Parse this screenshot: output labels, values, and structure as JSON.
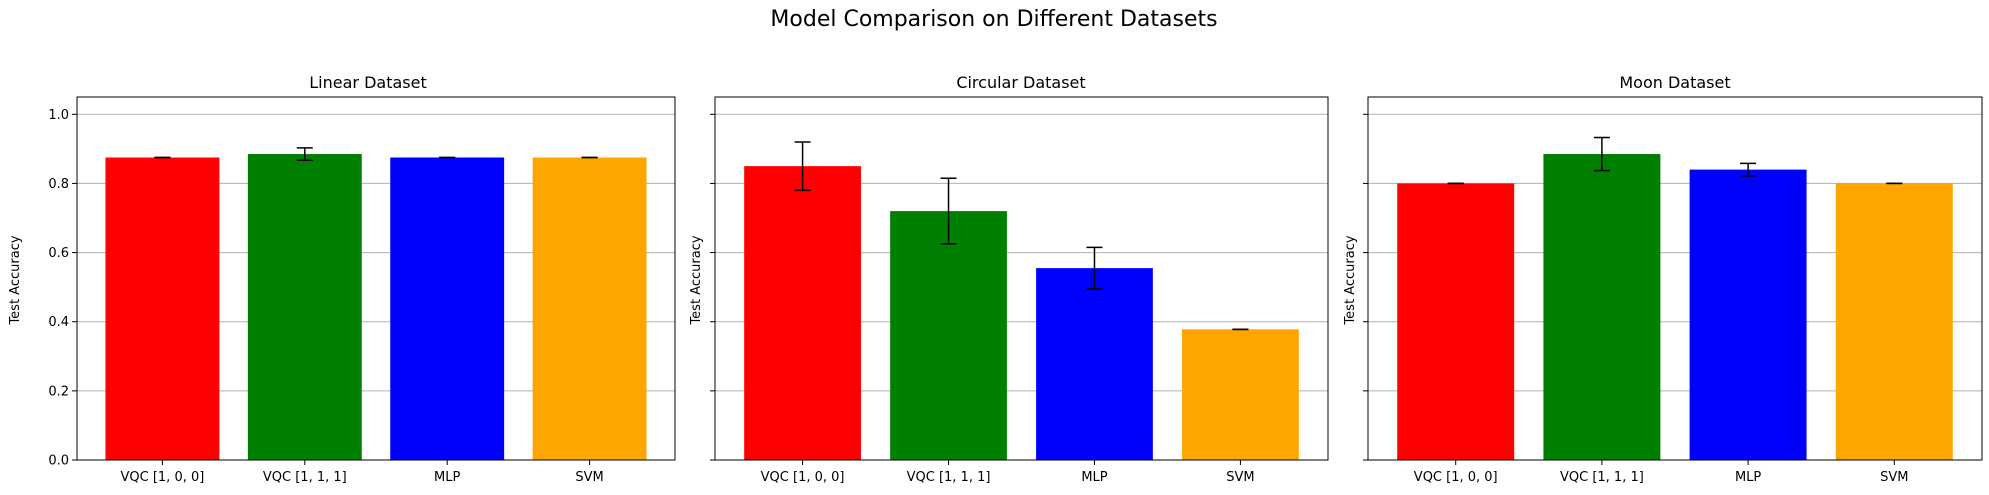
{
  "figure": {
    "title": "Model Comparison on Different Datasets"
  },
  "chart_data": [
    {
      "type": "bar",
      "title": "Linear Dataset",
      "xlabel": "",
      "ylabel": "Test Accuracy",
      "ylim": [
        0,
        1.05
      ],
      "yticks": [
        "0.0",
        "0.2",
        "0.4",
        "0.6",
        "0.8",
        "1.0"
      ],
      "show_ytick_labels": true,
      "grid": "y",
      "categories": [
        "VQC [1, 0, 0]",
        "VQC [1, 1, 1]",
        "MLP",
        "SVM"
      ],
      "values": [
        0.875,
        0.885,
        0.875,
        0.875
      ],
      "errors": [
        0.0,
        0.018,
        0.0,
        0.0
      ],
      "colors": [
        "#ff0000",
        "#008000",
        "#0000ff",
        "#ffa500"
      ]
    },
    {
      "type": "bar",
      "title": "Circular Dataset",
      "xlabel": "",
      "ylabel": "Test Accuracy",
      "ylim": [
        0,
        1.05
      ],
      "yticks": [
        "0.0",
        "0.2",
        "0.4",
        "0.6",
        "0.8",
        "1.0"
      ],
      "show_ytick_labels": false,
      "grid": "y",
      "categories": [
        "VQC [1, 0, 0]",
        "VQC [1, 1, 1]",
        "MLP",
        "SVM"
      ],
      "values": [
        0.85,
        0.72,
        0.555,
        0.378
      ],
      "errors": [
        0.07,
        0.095,
        0.06,
        0.0
      ],
      "colors": [
        "#ff0000",
        "#008000",
        "#0000ff",
        "#ffa500"
      ]
    },
    {
      "type": "bar",
      "title": "Moon Dataset",
      "xlabel": "",
      "ylabel": "Test Accuracy",
      "ylim": [
        0,
        1.05
      ],
      "yticks": [
        "0.0",
        "0.2",
        "0.4",
        "0.6",
        "0.8",
        "1.0"
      ],
      "show_ytick_labels": false,
      "grid": "y",
      "categories": [
        "VQC [1, 0, 0]",
        "VQC [1, 1, 1]",
        "MLP",
        "SVM"
      ],
      "values": [
        0.8,
        0.885,
        0.84,
        0.8
      ],
      "errors": [
        0.0,
        0.048,
        0.018,
        0.0
      ],
      "colors": [
        "#ff0000",
        "#008000",
        "#0000ff",
        "#ffa500"
      ]
    }
  ]
}
